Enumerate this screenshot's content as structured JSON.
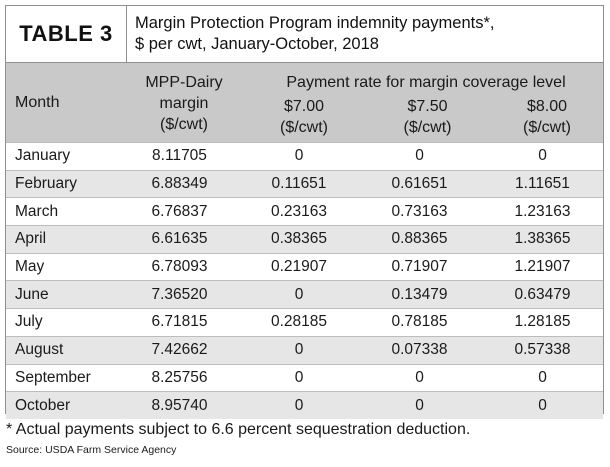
{
  "table": {
    "label": "TABLE 3",
    "title_line1": "Margin Protection Program indemnity payments*,",
    "title_line2": "$ per cwt, January-October, 2018",
    "headers": {
      "month": "Month",
      "mpp_line1": "MPP-Dairy",
      "mpp_line2": "margin",
      "mpp_line3": "($/cwt)",
      "group": "Payment rate for margin coverage level",
      "r700_line1": "$7.00",
      "r700_line2": "($/cwt)",
      "r750_line1": "$7.50",
      "r750_line2": "($/cwt)",
      "r800_line1": "$8.00",
      "r800_line2": "($/cwt)"
    },
    "rows": [
      {
        "month": "January",
        "mpp": "8.11705",
        "r700": "0",
        "r750": "0",
        "r800": "0"
      },
      {
        "month": "February",
        "mpp": "6.88349",
        "r700": "0.11651",
        "r750": "0.61651",
        "r800": "1.11651"
      },
      {
        "month": "March",
        "mpp": "6.76837",
        "r700": "0.23163",
        "r750": "0.73163",
        "r800": "1.23163"
      },
      {
        "month": "April",
        "mpp": "6.61635",
        "r700": "0.38365",
        "r750": "0.88365",
        "r800": "1.38365"
      },
      {
        "month": "May",
        "mpp": "6.78093",
        "r700": "0.21907",
        "r750": "0.71907",
        "r800": "1.21907"
      },
      {
        "month": "June",
        "mpp": "7.36520",
        "r700": "0",
        "r750": "0.13479",
        "r800": "0.63479"
      },
      {
        "month": "July",
        "mpp": "6.71815",
        "r700": "0.28185",
        "r750": "0.78185",
        "r800": "1.28185"
      },
      {
        "month": "August",
        "mpp": "7.42662",
        "r700": "0",
        "r750": "0.07338",
        "r800": "0.57338"
      },
      {
        "month": "September",
        "mpp": "8.25756",
        "r700": "0",
        "r750": "0",
        "r800": "0"
      },
      {
        "month": "October",
        "mpp": "8.95740",
        "r700": "0",
        "r750": "0",
        "r800": "0"
      }
    ]
  },
  "footnote": "* Actual payments subject to 6.6 percent sequestration deduction.",
  "source": "Source: USDA Farm Service Agency",
  "colors": {
    "header_bg": "#c9c9c9",
    "stripe_bg": "#e6e6e6",
    "border": "#8f8f8f"
  }
}
